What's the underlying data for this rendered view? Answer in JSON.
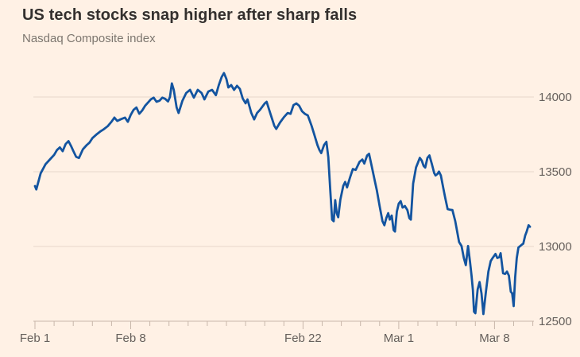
{
  "chart_data": {
    "type": "line",
    "title": "US tech stocks snap higher after sharp falls",
    "subtitle": "Nasdaq Composite index",
    "series_name": "Nasdaq Composite index",
    "x_unit": "trading days after Feb 1 2021 close (intraday fractions)",
    "legend": false,
    "grid": true,
    "ylim": [
      12500,
      14000
    ],
    "y_gridline_values": [
      14000,
      13500,
      13000
    ],
    "y_axis_value": 12500,
    "y_tick_labels": [
      "14000",
      "13500",
      "13000",
      "12500"
    ],
    "x_ticks_major": [
      {
        "d": 0,
        "label": "Feb 1"
      },
      {
        "d": 5,
        "label": "Feb 8"
      },
      {
        "d": 14,
        "label": "Feb 22"
      },
      {
        "d": 19,
        "label": "Mar 1"
      },
      {
        "d": 24,
        "label": "Mar 8"
      }
    ],
    "x_minor_tick_days": [
      0,
      1,
      2,
      3,
      4,
      5,
      6,
      7,
      8,
      9,
      10,
      11,
      12,
      13,
      14,
      15,
      16,
      17,
      18,
      19,
      20,
      21,
      22,
      23,
      24,
      25,
      26
    ],
    "points": [
      [
        0,
        13404
      ],
      [
        0.07,
        13382
      ],
      [
        0.3,
        13490
      ],
      [
        0.55,
        13550
      ],
      [
        0.8,
        13585
      ],
      [
        1,
        13613
      ],
      [
        1.15,
        13645
      ],
      [
        1.3,
        13663
      ],
      [
        1.45,
        13638
      ],
      [
        1.6,
        13685
      ],
      [
        1.75,
        13705
      ],
      [
        1.9,
        13668
      ],
      [
        2,
        13640
      ],
      [
        2.15,
        13600
      ],
      [
        2.3,
        13592
      ],
      [
        2.5,
        13650
      ],
      [
        2.7,
        13678
      ],
      [
        2.85,
        13695
      ],
      [
        3,
        13725
      ],
      [
        3.2,
        13748
      ],
      [
        3.4,
        13768
      ],
      [
        3.6,
        13785
      ],
      [
        3.8,
        13805
      ],
      [
        4,
        13835
      ],
      [
        4.15,
        13862
      ],
      [
        4.3,
        13840
      ],
      [
        4.5,
        13852
      ],
      [
        4.7,
        13862
      ],
      [
        4.85,
        13834
      ],
      [
        5,
        13880
      ],
      [
        5.15,
        13914
      ],
      [
        5.3,
        13930
      ],
      [
        5.45,
        13888
      ],
      [
        5.6,
        13910
      ],
      [
        5.75,
        13941
      ],
      [
        5.9,
        13962
      ],
      [
        6.05,
        13984
      ],
      [
        6.2,
        13996
      ],
      [
        6.35,
        13968
      ],
      [
        6.5,
        13975
      ],
      [
        6.65,
        13996
      ],
      [
        6.8,
        13988
      ],
      [
        6.95,
        13970
      ],
      [
        7.05,
        14000
      ],
      [
        7.15,
        14091
      ],
      [
        7.25,
        14048
      ],
      [
        7.4,
        13930
      ],
      [
        7.5,
        13893
      ],
      [
        7.7,
        13975
      ],
      [
        7.9,
        14027
      ],
      [
        8.1,
        14048
      ],
      [
        8.3,
        13996
      ],
      [
        8.5,
        14048
      ],
      [
        8.7,
        14027
      ],
      [
        8.85,
        13984
      ],
      [
        9.05,
        14036
      ],
      [
        9.25,
        14048
      ],
      [
        9.45,
        14012
      ],
      [
        9.6,
        14080
      ],
      [
        9.75,
        14134
      ],
      [
        9.87,
        14160
      ],
      [
        10,
        14120
      ],
      [
        10.1,
        14064
      ],
      [
        10.25,
        14080
      ],
      [
        10.4,
        14048
      ],
      [
        10.55,
        14075
      ],
      [
        10.7,
        14054
      ],
      [
        10.85,
        13990
      ],
      [
        11,
        13958
      ],
      [
        11.1,
        13984
      ],
      [
        11.3,
        13893
      ],
      [
        11.45,
        13850
      ],
      [
        11.6,
        13893
      ],
      [
        11.75,
        13914
      ],
      [
        11.9,
        13940
      ],
      [
        12,
        13957
      ],
      [
        12.1,
        13968
      ],
      [
        12.3,
        13887
      ],
      [
        12.5,
        13807
      ],
      [
        12.6,
        13786
      ],
      [
        12.8,
        13830
      ],
      [
        13,
        13865
      ],
      [
        13.2,
        13893
      ],
      [
        13.35,
        13887
      ],
      [
        13.5,
        13946
      ],
      [
        13.65,
        13957
      ],
      [
        13.8,
        13941
      ],
      [
        13.95,
        13904
      ],
      [
        14.1,
        13887
      ],
      [
        14.25,
        13877
      ],
      [
        14.45,
        13807
      ],
      [
        14.6,
        13743
      ],
      [
        14.75,
        13679
      ],
      [
        14.85,
        13647
      ],
      [
        14.95,
        13625
      ],
      [
        15.1,
        13679
      ],
      [
        15.22,
        13700
      ],
      [
        15.32,
        13598
      ],
      [
        15.42,
        13384
      ],
      [
        15.52,
        13180
      ],
      [
        15.6,
        13169
      ],
      [
        15.68,
        13310
      ],
      [
        15.76,
        13223
      ],
      [
        15.84,
        13196
      ],
      [
        15.95,
        13314
      ],
      [
        16.1,
        13405
      ],
      [
        16.2,
        13432
      ],
      [
        16.3,
        13395
      ],
      [
        16.45,
        13459
      ],
      [
        16.6,
        13518
      ],
      [
        16.75,
        13512
      ],
      [
        16.95,
        13566
      ],
      [
        17.1,
        13582
      ],
      [
        17.2,
        13555
      ],
      [
        17.35,
        13609
      ],
      [
        17.45,
        13620
      ],
      [
        17.6,
        13528
      ],
      [
        17.75,
        13437
      ],
      [
        17.85,
        13378
      ],
      [
        18,
        13271
      ],
      [
        18.15,
        13169
      ],
      [
        18.25,
        13142
      ],
      [
        18.35,
        13190
      ],
      [
        18.45,
        13223
      ],
      [
        18.53,
        13180
      ],
      [
        18.63,
        13207
      ],
      [
        18.73,
        13110
      ],
      [
        18.8,
        13100
      ],
      [
        18.9,
        13234
      ],
      [
        19,
        13287
      ],
      [
        19.1,
        13303
      ],
      [
        19.2,
        13260
      ],
      [
        19.32,
        13271
      ],
      [
        19.45,
        13244
      ],
      [
        19.55,
        13190
      ],
      [
        19.63,
        13180
      ],
      [
        19.75,
        13421
      ],
      [
        19.9,
        13528
      ],
      [
        20,
        13560
      ],
      [
        20.1,
        13593
      ],
      [
        20.2,
        13575
      ],
      [
        20.3,
        13539
      ],
      [
        20.38,
        13528
      ],
      [
        20.5,
        13593
      ],
      [
        20.6,
        13609
      ],
      [
        20.72,
        13555
      ],
      [
        20.85,
        13491
      ],
      [
        20.92,
        13475
      ],
      [
        21.02,
        13485
      ],
      [
        21.1,
        13501
      ],
      [
        21.2,
        13475
      ],
      [
        21.32,
        13394
      ],
      [
        21.42,
        13330
      ],
      [
        21.55,
        13250
      ],
      [
        21.68,
        13246
      ],
      [
        21.8,
        13244
      ],
      [
        21.95,
        13169
      ],
      [
        22.05,
        13100
      ],
      [
        22.15,
        13030
      ],
      [
        22.28,
        13003
      ],
      [
        22.4,
        12923
      ],
      [
        22.5,
        12875
      ],
      [
        22.62,
        13003
      ],
      [
        22.72,
        12896
      ],
      [
        22.8,
        12805
      ],
      [
        22.87,
        12708
      ],
      [
        22.93,
        12564
      ],
      [
        23,
        12553
      ],
      [
        23.12,
        12714
      ],
      [
        23.22,
        12762
      ],
      [
        23.32,
        12687
      ],
      [
        23.42,
        12548
      ],
      [
        23.55,
        12698
      ],
      [
        23.68,
        12832
      ],
      [
        23.8,
        12902
      ],
      [
        23.9,
        12923
      ],
      [
        24.05,
        12950
      ],
      [
        24.15,
        12923
      ],
      [
        24.25,
        12928
      ],
      [
        24.32,
        12955
      ],
      [
        24.45,
        12821
      ],
      [
        24.55,
        12816
      ],
      [
        24.65,
        12832
      ],
      [
        24.75,
        12805
      ],
      [
        24.85,
        12698
      ],
      [
        24.92,
        12687
      ],
      [
        25,
        12601
      ],
      [
        25.08,
        12794
      ],
      [
        25.16,
        12923
      ],
      [
        25.25,
        12993
      ],
      [
        25.4,
        13009
      ],
      [
        25.5,
        13019
      ],
      [
        25.6,
        13073
      ],
      [
        25.68,
        13100
      ],
      [
        25.78,
        13142
      ],
      [
        25.85,
        13132
      ]
    ],
    "colors": {
      "background": "#FFF1E5",
      "line": "#1354A0",
      "grid": "#E7D7CA",
      "axis": "#C8B7AA",
      "tick_label": "#66605C",
      "title": "#33302E",
      "subtitle": "#7D766F"
    }
  }
}
